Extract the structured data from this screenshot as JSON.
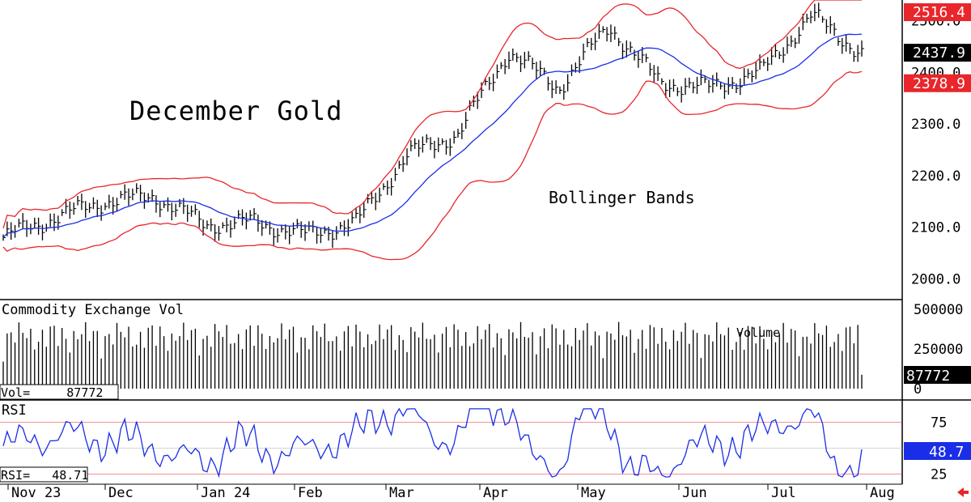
{
  "price_panel": {
    "title": "December Gold",
    "annotation": "Bollinger Bands",
    "y_ticks": [
      "2500.0",
      "2400.0",
      "2300.0",
      "2200.0",
      "2100.0",
      "2000.0"
    ],
    "badges": [
      {
        "label": "2516.4",
        "color": "#e8262b"
      },
      {
        "label": "2437.9",
        "color": "#000000"
      },
      {
        "label": "2378.9",
        "color": "#e8262b"
      }
    ]
  },
  "volume_panel": {
    "title": "Commodity Exchange Vol",
    "annotation": "Volume",
    "readout": "Vol=     87772",
    "y_ticks": [
      "500000",
      "250000",
      "0"
    ],
    "badge": "87772"
  },
  "rsi_panel": {
    "title": "RSI",
    "readout": "RSI=   48.71",
    "y_ticks": [
      "75",
      "25"
    ],
    "badge": "48.7",
    "badge_color": "#1a2ee8"
  },
  "months": [
    "Nov 23",
    "Dec",
    "Jan 24",
    "Feb",
    "Mar",
    "Apr",
    "May",
    "Jun",
    "Jul",
    "Aug"
  ],
  "chart_data": {
    "type": "ohlc",
    "title": "December Gold",
    "x_range": [
      "Nov 23",
      "Aug"
    ],
    "price_ylim": [
      1960,
      2540
    ],
    "price_series": [
      {
        "date": "Nov 23",
        "close": 2080
      },
      {
        "date": "Dec",
        "close": 2118
      },
      {
        "date": "Dec mid",
        "close": 2150
      },
      {
        "date": "Jan 24",
        "close": 2160
      },
      {
        "date": "Jan mid",
        "close": 2105
      },
      {
        "date": "Feb",
        "close": 2110
      },
      {
        "date": "Feb mid",
        "close": 2085
      },
      {
        "date": "Mar",
        "close": 2110
      },
      {
        "date": "Mar mid",
        "close": 2240
      },
      {
        "date": "Apr",
        "close": 2280
      },
      {
        "date": "Apr mid",
        "close": 2440
      },
      {
        "date": "May",
        "close": 2370
      },
      {
        "date": "May mid",
        "close": 2490
      },
      {
        "date": "Jun",
        "close": 2380
      },
      {
        "date": "Jun mid",
        "close": 2370
      },
      {
        "date": "Jul",
        "close": 2400
      },
      {
        "date": "Jul mid",
        "close": 2510
      },
      {
        "date": "latest",
        "close": 2437.9
      }
    ],
    "bollinger": {
      "upper": 2516.4,
      "middle": 2437.9,
      "lower": 2378.9
    },
    "volume_ylim": [
      0,
      550000
    ],
    "volume_last": 87772,
    "rsi_ylim": [
      15,
      95
    ],
    "rsi_levels": [
      75,
      50,
      25
    ],
    "rsi_last": 48.71
  }
}
